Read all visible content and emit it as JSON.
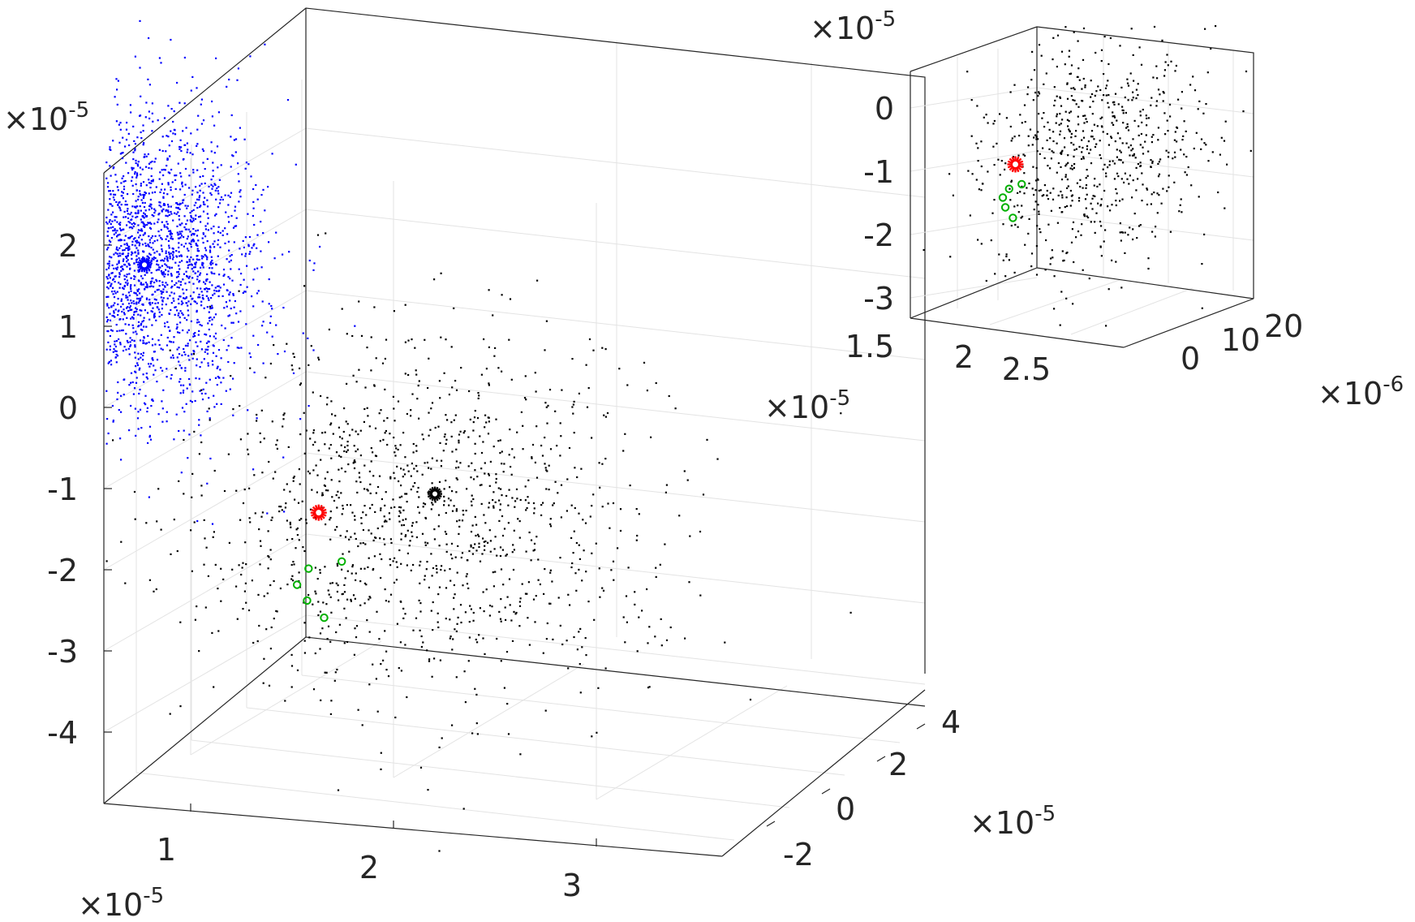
{
  "chart_data": [
    {
      "type": "scatter",
      "view": "3d",
      "grid": true,
      "x_multiplier": "×10",
      "x_exponent": "-5",
      "y_multiplier": "×10",
      "y_exponent": "-5",
      "z_multiplier": "×10",
      "z_exponent": "-5",
      "xlim": [
        0.6,
        3.8
      ],
      "ylim": [
        -3,
        5
      ],
      "zlim": [
        -4.8,
        3
      ],
      "x_ticks": [
        "1",
        "2",
        "3"
      ],
      "x_tick_values": [
        1,
        2,
        3
      ],
      "y_ticks": [
        "-2",
        "0",
        "2",
        "4"
      ],
      "y_tick_values": [
        -2,
        0,
        2,
        4
      ],
      "z_ticks": [
        "2",
        "1",
        "0",
        "-1",
        "-2",
        "-3",
        "-4"
      ],
      "z_tick_values": [
        2,
        1,
        0,
        -1,
        -2,
        -3,
        -4
      ],
      "series": [
        {
          "color": "#0000ff",
          "marker": "dot",
          "count": 2500,
          "center": [
            1.0,
            0.0,
            1.8
          ],
          "spread": [
            0.25,
            0.9,
            0.9
          ],
          "highlight": [
            1.0,
            0.0,
            1.8
          ]
        },
        {
          "color": "#000000",
          "marker": "dot",
          "count": 1300,
          "center": [
            2.4,
            -0.5,
            -0.9
          ],
          "spread": [
            0.55,
            1.2,
            1.1
          ],
          "highlight": [
            2.5,
            -0.5,
            -0.6
          ]
        },
        {
          "color": "#ff0000",
          "marker": "star",
          "points": [
            [
              1.9,
              -0.3,
              -1.0
            ]
          ]
        },
        {
          "color": "#00b000",
          "marker": "circle",
          "points": [
            [
              1.85,
              -0.3,
              -1.7
            ],
            [
              1.8,
              -0.35,
              -1.9
            ],
            [
              1.84,
              -0.28,
              -2.1
            ],
            [
              1.92,
              -0.25,
              -2.3
            ],
            [
              2.0,
              -0.2,
              -1.6
            ]
          ]
        }
      ]
    },
    {
      "type": "scatter",
      "view": "3d",
      "grid": true,
      "x_multiplier": "",
      "x_exponent": "",
      "y_multiplier": "×10",
      "y_exponent": "-6",
      "z_multiplier": "×10",
      "z_exponent": "-5",
      "xlim": [
        1.5,
        3.0
      ],
      "ylim": [
        -8,
        28
      ],
      "zlim": [
        -3.3,
        0.5
      ],
      "x_ticks": [
        "1.5",
        "2",
        "2.5"
      ],
      "x_tick_values": [
        1.5,
        2,
        2.5
      ],
      "y_ticks": [
        "0",
        "10",
        "20"
      ],
      "y_tick_values": [
        0,
        10,
        20
      ],
      "z_ticks": [
        "0",
        "-1",
        "-2",
        "-3"
      ],
      "z_tick_values": [
        0,
        -1,
        -2,
        -3
      ],
      "series": [
        {
          "color": "#000000",
          "marker": "dot",
          "count": 700,
          "center": [
            2.4,
            5,
            -1.0
          ],
          "spread": [
            0.3,
            8,
            0.9
          ]
        },
        {
          "color": "#ff0000",
          "marker": "star",
          "points": [
            [
              2.0,
              0,
              -1.1
            ]
          ]
        },
        {
          "color": "#00b000",
          "marker": "circle",
          "points": [
            [
              1.95,
              0,
              -1.5
            ],
            [
              1.9,
              0,
              -1.65
            ],
            [
              1.92,
              0,
              -1.8
            ],
            [
              1.98,
              0,
              -1.95
            ],
            [
              2.05,
              0,
              -1.4
            ]
          ]
        }
      ]
    }
  ]
}
